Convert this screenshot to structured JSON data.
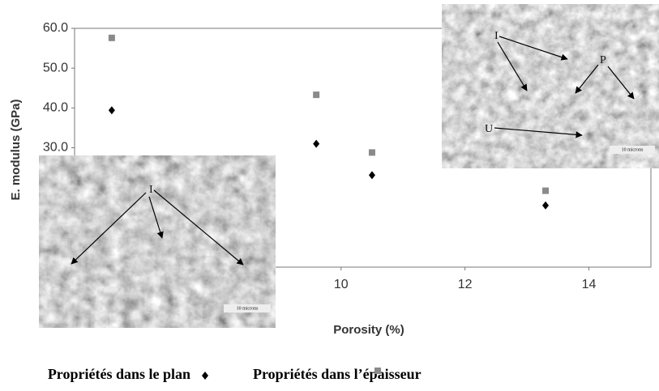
{
  "chart_data": {
    "type": "scatter",
    "xlabel": "Porosity (%)",
    "ylabel": "E. modulus (GPa)",
    "xlim": [
      5.7,
      15
    ],
    "ylim": [
      0,
      60
    ],
    "xticks": [
      10,
      12,
      14
    ],
    "yticks": [
      {
        "value": 30,
        "label": "30.0"
      },
      {
        "value": 40,
        "label": "40.0"
      },
      {
        "value": 50,
        "label": "50.0"
      },
      {
        "value": 60,
        "label": "60.0"
      }
    ],
    "series": [
      {
        "name": "Propriétés dans le plan",
        "color": "#000000",
        "marker": "diamond",
        "x": [
          6.3,
          9.6,
          10.5,
          13.3
        ],
        "values": [
          39.4,
          31.0,
          23.1,
          15.5
        ]
      },
      {
        "name": "Propriétés dans l’épaisseur",
        "color": "#8a8a8a",
        "marker": "square",
        "x": [
          6.3,
          9.6,
          10.5,
          13.3
        ],
        "values": [
          57.6,
          43.3,
          28.8,
          19.2
        ]
      }
    ],
    "insets": [
      {
        "labels": [
          "I"
        ],
        "scale": "10 microns"
      },
      {
        "labels": [
          "I",
          "P",
          "U"
        ],
        "scale": "10 microns"
      }
    ]
  }
}
